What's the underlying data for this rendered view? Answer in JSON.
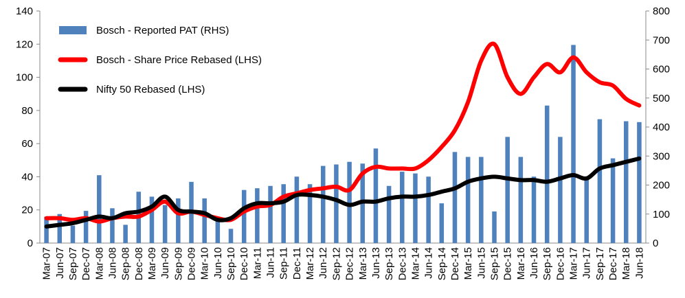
{
  "chart_data": {
    "type": "bar_line",
    "categories": [
      "Mar-07",
      "Jun-07",
      "Sep-07",
      "Dec-07",
      "Mar-08",
      "Jun-08",
      "Sep-08",
      "Dec-08",
      "Mar-09",
      "Jun-09",
      "Sep-09",
      "Dec-09",
      "Mar-10",
      "Jun-10",
      "Sep-10",
      "Dec-10",
      "Mar-11",
      "Jun-11",
      "Sep-11",
      "Dec-11",
      "Mar-12",
      "Jun-12",
      "Sep-12",
      "Dec-12",
      "Mar-13",
      "Jun-13",
      "Sep-13",
      "Dec-13",
      "Mar-14",
      "Jun-14",
      "Sep-14",
      "Dec-14",
      "Mar-15",
      "Jun-15",
      "Sep-15",
      "Dec-15",
      "Mar-16",
      "Jun-16",
      "Sep-16",
      "Dec-16",
      "Mar-17",
      "Jun-17",
      "Sep-17",
      "Dec-17",
      "Mar-18",
      "Jun-18"
    ],
    "series": [
      {
        "name": "Bosch - Reported PAT (RHS)",
        "kind": "bar",
        "axis": "y2",
        "color": "#4f81bd",
        "values": [
          91,
          100,
          60,
          111,
          234,
          120,
          63,
          177,
          160,
          131,
          154,
          211,
          154,
          86,
          49,
          183,
          189,
          197,
          203,
          229,
          203,
          266,
          271,
          280,
          274,
          326,
          197,
          246,
          240,
          229,
          137,
          314,
          297,
          297,
          109,
          366,
          297,
          229,
          474,
          366,
          683,
          230,
          427,
          292,
          420,
          417
        ]
      },
      {
        "name": "Bosch - Share Price Rebased (LHS)",
        "kind": "line",
        "color": "#ff0000",
        "values": [
          15,
          15,
          14,
          15,
          13,
          15,
          16,
          16,
          20,
          25,
          18,
          19,
          17,
          15,
          14,
          19,
          22,
          23,
          28,
          30,
          32,
          33,
          34,
          32,
          42,
          46,
          45,
          45,
          45,
          50,
          58,
          68,
          85,
          110,
          120,
          100,
          90,
          100,
          108,
          103,
          112,
          103,
          97,
          95,
          87,
          83
        ]
      },
      {
        "name": "Nifty 50 Rebased (LHS)",
        "kind": "line",
        "color": "#000000",
        "values": [
          10,
          11,
          12,
          14,
          16,
          15,
          18,
          19,
          22,
          28,
          20,
          19,
          18,
          14,
          15,
          21,
          24,
          24,
          25,
          29,
          29,
          28,
          26,
          23,
          25,
          25,
          27,
          28,
          28,
          29,
          31,
          33,
          37,
          39,
          40,
          39,
          38,
          38,
          37,
          39,
          41,
          39,
          45,
          47,
          49,
          51
        ]
      }
    ],
    "ylim": [
      0,
      140
    ],
    "yticks": [
      0,
      20,
      40,
      60,
      80,
      100,
      120,
      140
    ],
    "y2lim": [
      0,
      800
    ],
    "y2ticks": [
      0,
      100,
      200,
      300,
      400,
      500,
      600,
      700,
      800
    ],
    "legend": "top-left"
  }
}
